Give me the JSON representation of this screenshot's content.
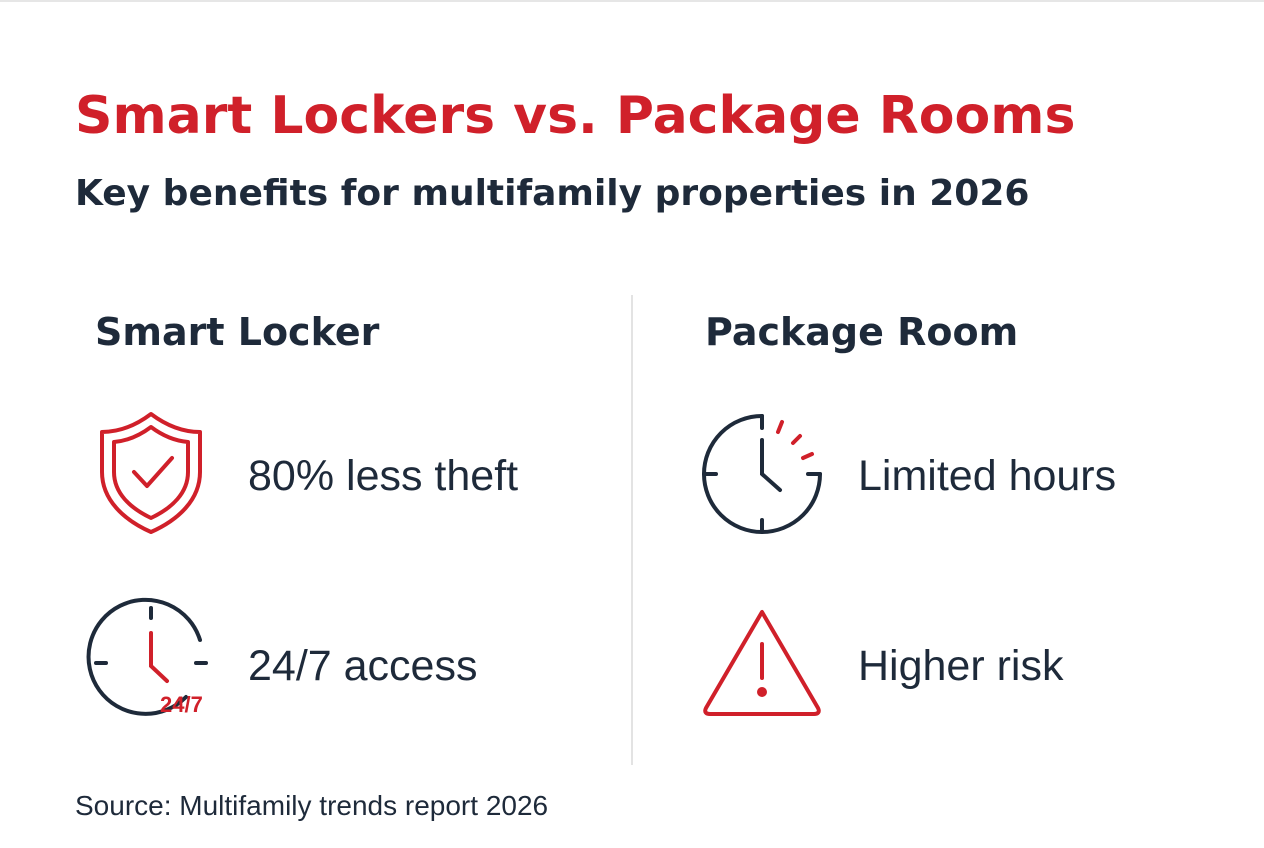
{
  "header": {
    "title": "Smart Lockers vs. Package Rooms",
    "subtitle": "Key benefits for multifamily properties in 2026"
  },
  "columns": [
    {
      "heading": "Smart Locker",
      "items": [
        {
          "text": "80% less theft"
        },
        {
          "text": "24/7 access",
          "badge": "24/7"
        }
      ]
    },
    {
      "heading": "Package Room",
      "items": [
        {
          "text": "Limited hours"
        },
        {
          "text": "Higher risk"
        }
      ]
    }
  ],
  "footer": {
    "source": "Source: Multifamily trends report 2026"
  }
}
